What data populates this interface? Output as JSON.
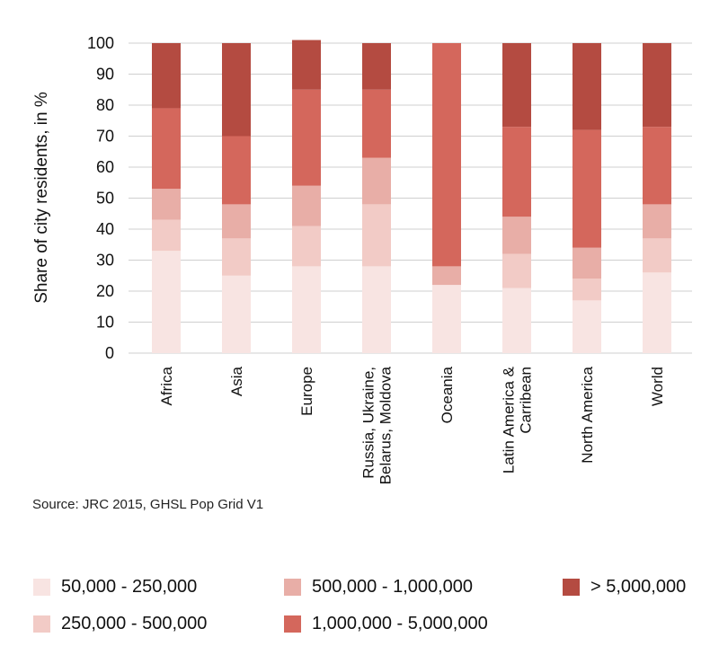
{
  "chart_data": {
    "type": "bar",
    "stacked": true,
    "categories": [
      "Africa",
      "Asia",
      "Europe",
      "Russia, Ukraine, Belarus, Moldova",
      "Oceania",
      "Latin America & Carribean",
      "North America",
      "World"
    ],
    "category_lines": [
      [
        "Africa"
      ],
      [
        "Asia"
      ],
      [
        "Europe"
      ],
      [
        "Russia, Ukraine,",
        "Belarus, Moldova"
      ],
      [
        "Oceania"
      ],
      [
        "Latin America &",
        "Carribean"
      ],
      [
        "North America"
      ],
      [
        "World"
      ]
    ],
    "series": [
      {
        "name": "50,000 - 250,000",
        "color": "#f8e4e2",
        "values": [
          33,
          25,
          28,
          28,
          22,
          21,
          17,
          26
        ]
      },
      {
        "name": "250,000 - 500,000",
        "color": "#f2cbc6",
        "values": [
          10,
          12,
          13,
          20,
          0,
          11,
          7,
          11
        ]
      },
      {
        "name": "500,000 - 1,000,000",
        "color": "#e8aea7",
        "values": [
          10,
          11,
          13,
          15,
          6,
          12,
          10,
          11
        ]
      },
      {
        "name": "1,000,000 - 5,000,000",
        "color": "#d4675c",
        "values": [
          26,
          22,
          31,
          22,
          72,
          29,
          38,
          25
        ]
      },
      {
        "name": "> 5,000,000",
        "color": "#b44b41",
        "values": [
          21,
          30,
          16,
          15,
          0,
          27,
          28,
          27
        ]
      }
    ],
    "ylabel": "Share of city residents, in %",
    "ylim": [
      0,
      100
    ],
    "yticks": [
      0,
      10,
      20,
      30,
      40,
      50,
      60,
      70,
      80,
      90,
      100
    ],
    "grid": true,
    "legend_position": "bottom"
  },
  "source": "Source: JRC 2015, GHSL Pop Grid V1"
}
